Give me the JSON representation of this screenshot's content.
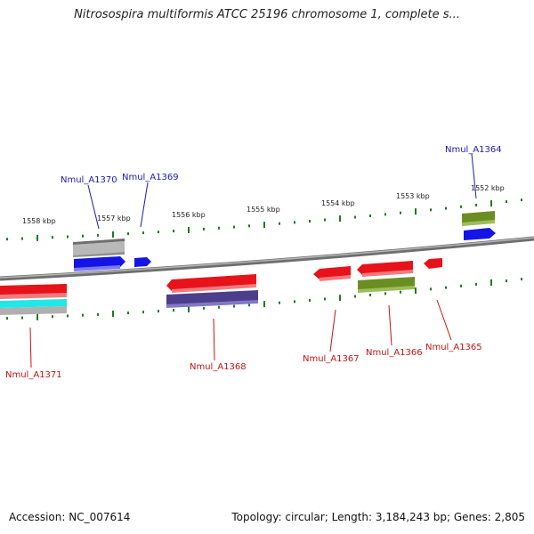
{
  "header": {
    "title": "Nitrosospira multiformis ATCC 25196 chromosome 1, complete s..."
  },
  "footer": {
    "accession": "Accession: NC_007614",
    "summary": "Topology: circular; Length: 3,184,243 bp; Genes: 2,805"
  },
  "scale": {
    "labels": [
      "1558 kbp",
      "1557 kbp",
      "1556 kbp",
      "1555 kbp",
      "1554 kbp",
      "1553 kbp",
      "1552 kbp"
    ]
  },
  "genes": {
    "forward": [
      "Nmul_A1370",
      "Nmul_A1369",
      "Nmul_A1364"
    ],
    "reverse": [
      "Nmul_A1371",
      "Nmul_A1368",
      "Nmul_A1367",
      "Nmul_A1366",
      "Nmul_A1365"
    ]
  },
  "colors": {
    "forward_label": "#1a1ab8",
    "reverse_label": "#c41414",
    "tick": "#1f7a1f",
    "backbone": "#8a8a8a",
    "red": "#e8121b",
    "blue": "#1414e6",
    "olive": "#6b8e23",
    "gray": "#b0b0b0",
    "purple": "#4b3f8c",
    "cyan": "#1ee8e8"
  }
}
